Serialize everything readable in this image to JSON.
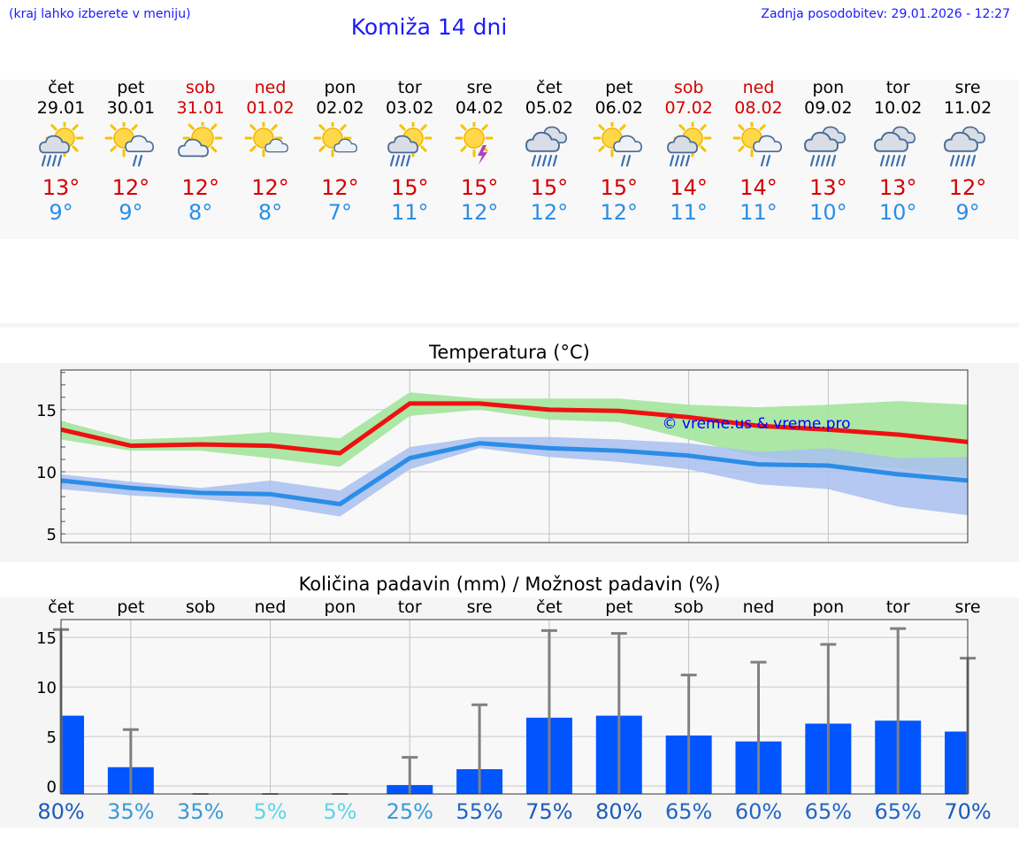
{
  "header": {
    "left_note": "(kraj lahko izberete v meniju)",
    "title": "Komiža 14 dni",
    "updated": "Zadnja posodobitev: 29.01.2026 - 12:27"
  },
  "days": [
    {
      "name": "čet",
      "date": "29.01",
      "weekend": false,
      "icon": "sun-cloud-rain-icon",
      "max": "13°",
      "min": "9°"
    },
    {
      "name": "pet",
      "date": "30.01",
      "weekend": false,
      "icon": "sun-cloud-light-rain-icon",
      "max": "12°",
      "min": "9°"
    },
    {
      "name": "sob",
      "date": "31.01",
      "weekend": true,
      "icon": "sun-cloud-icon",
      "max": "12°",
      "min": "8°"
    },
    {
      "name": "ned",
      "date": "01.02",
      "weekend": true,
      "icon": "sun-small-cloud-icon",
      "max": "12°",
      "min": "8°"
    },
    {
      "name": "pon",
      "date": "02.02",
      "weekend": false,
      "icon": "sun-small-cloud-icon",
      "max": "12°",
      "min": "7°"
    },
    {
      "name": "tor",
      "date": "03.02",
      "weekend": false,
      "icon": "sun-cloud-rain-icon",
      "max": "15°",
      "min": "11°"
    },
    {
      "name": "sre",
      "date": "04.02",
      "weekend": false,
      "icon": "sun-thunder-icon",
      "max": "15°",
      "min": "12°"
    },
    {
      "name": "čet",
      "date": "05.02",
      "weekend": false,
      "icon": "cloud-heavy-rain-icon",
      "max": "15°",
      "min": "12°"
    },
    {
      "name": "pet",
      "date": "06.02",
      "weekend": false,
      "icon": "sun-cloud-light-rain-icon",
      "max": "15°",
      "min": "12°"
    },
    {
      "name": "sob",
      "date": "07.02",
      "weekend": true,
      "icon": "sun-cloud-rain-icon",
      "max": "14°",
      "min": "11°"
    },
    {
      "name": "ned",
      "date": "08.02",
      "weekend": true,
      "icon": "sun-cloud-light-rain-icon",
      "max": "14°",
      "min": "11°"
    },
    {
      "name": "pon",
      "date": "09.02",
      "weekend": false,
      "icon": "cloud-heavy-rain-icon",
      "max": "13°",
      "min": "10°"
    },
    {
      "name": "tor",
      "date": "10.02",
      "weekend": false,
      "icon": "cloud-heavy-rain-icon",
      "max": "13°",
      "min": "10°"
    },
    {
      "name": "sre",
      "date": "11.02",
      "weekend": false,
      "icon": "cloud-heavy-rain-icon",
      "max": "12°",
      "min": "9°"
    }
  ],
  "colors": {
    "weekday": "#000000",
    "weekend": "#d40000",
    "max": "#d40000",
    "min": "#2b8de6",
    "max_band": "#a8e6a0",
    "min_band": "#a8c0f0",
    "overlap": "#7cc4a8",
    "bar": "#0055ff",
    "error": "#808080",
    "watermark": "#0000ff"
  },
  "chart_data": [
    {
      "type": "line",
      "title": "Temperatura (°C)",
      "watermark": "© vreme.us & vreme.pro",
      "ylim": [
        4.3,
        18.2
      ],
      "yticks": [
        5,
        10,
        15
      ],
      "x": [
        0,
        1,
        2,
        3,
        4,
        5,
        6,
        7,
        8,
        9,
        10,
        11,
        12,
        13
      ],
      "series": [
        {
          "name": "max",
          "values": [
            13.4,
            12.1,
            12.2,
            12.1,
            11.5,
            15.5,
            15.5,
            15.0,
            14.9,
            14.4,
            13.7,
            13.4,
            13.0,
            12.4
          ],
          "band_low": [
            12.6,
            11.7,
            11.7,
            11.1,
            10.4,
            14.5,
            15.0,
            14.2,
            14.0,
            12.6,
            11.2,
            10.6,
            10.3,
            9.6
          ],
          "band_high": [
            14.1,
            12.6,
            12.8,
            13.2,
            12.7,
            16.4,
            15.9,
            15.9,
            15.9,
            15.4,
            15.2,
            15.4,
            15.7,
            15.4
          ]
        },
        {
          "name": "min",
          "values": [
            9.3,
            8.7,
            8.3,
            8.2,
            7.4,
            11.1,
            12.3,
            11.9,
            11.7,
            11.3,
            10.6,
            10.5,
            9.8,
            9.3
          ],
          "band_low": [
            8.6,
            8.1,
            7.8,
            7.3,
            6.4,
            10.2,
            11.9,
            11.2,
            10.8,
            10.2,
            9.0,
            8.6,
            7.2,
            6.5
          ],
          "band_high": [
            9.8,
            9.2,
            8.7,
            9.3,
            8.5,
            12.0,
            12.8,
            12.8,
            12.6,
            12.3,
            11.6,
            11.9,
            11.1,
            11.2
          ]
        }
      ]
    },
    {
      "type": "bar",
      "title": "Količina padavin (mm) / Možnost padavin (%)",
      "ylim": [
        -0.8,
        16.8
      ],
      "yticks": [
        0,
        5,
        10,
        15
      ],
      "categories": [
        "čet",
        "pet",
        "sob",
        "ned",
        "pon",
        "tor",
        "sre",
        "čet",
        "pet",
        "sob",
        "ned",
        "pon",
        "tor",
        "sre"
      ],
      "values": [
        7.1,
        1.9,
        0,
        0,
        0,
        0.1,
        1.7,
        6.9,
        7.1,
        5.1,
        4.5,
        6.3,
        6.6,
        5.5
      ],
      "errors_high": [
        15.8,
        5.7,
        0,
        0,
        0,
        2.9,
        8.2,
        15.7,
        15.4,
        11.2,
        12.5,
        14.3,
        15.9,
        12.9
      ],
      "probability": [
        {
          "label": "80%",
          "color": "#1a5cb8"
        },
        {
          "label": "35%",
          "color": "#3a9ad6"
        },
        {
          "label": "35%",
          "color": "#3a9ad6"
        },
        {
          "label": "5%",
          "color": "#5ed4e6"
        },
        {
          "label": "5%",
          "color": "#5ed4e6"
        },
        {
          "label": "25%",
          "color": "#3a9ad6"
        },
        {
          "label": "55%",
          "color": "#2266c4"
        },
        {
          "label": "75%",
          "color": "#1a5cb8"
        },
        {
          "label": "80%",
          "color": "#1a5cb8"
        },
        {
          "label": "65%",
          "color": "#2266c4"
        },
        {
          "label": "60%",
          "color": "#2266c4"
        },
        {
          "label": "65%",
          "color": "#2266c4"
        },
        {
          "label": "65%",
          "color": "#2266c4"
        },
        {
          "label": "70%",
          "color": "#1a5cb8"
        }
      ]
    }
  ]
}
